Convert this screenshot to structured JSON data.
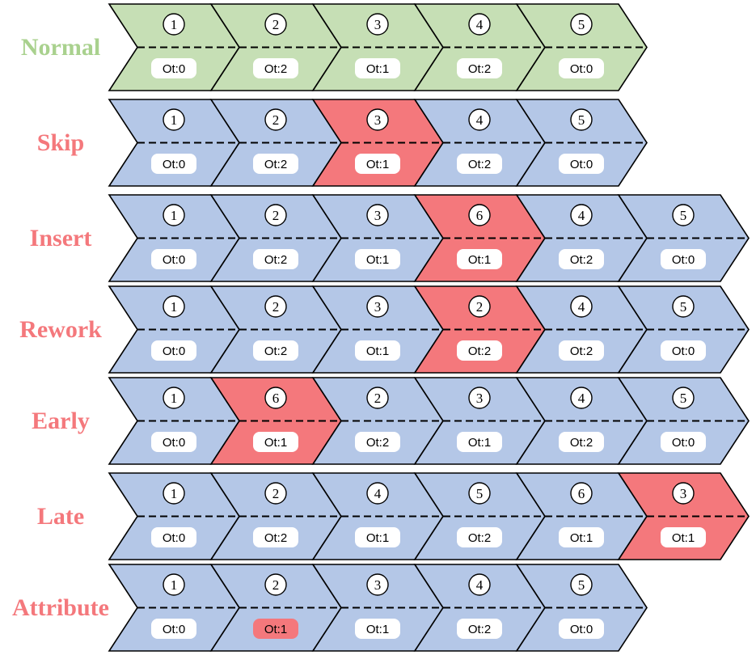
{
  "colors": {
    "normal": "#c6dfb5",
    "variant": "#b4c7e7",
    "deviation": "#f4787c",
    "label_normal": "#a9d18e",
    "label_deviation": "#f4787c",
    "outline": "#000000",
    "badge": "#ffffff"
  },
  "rows": [
    {
      "label": "Normal",
      "label_kind": "normal",
      "steps": [
        {
          "num": "1",
          "ot": "Ot:0",
          "fill": "normal",
          "badge": "white"
        },
        {
          "num": "2",
          "ot": "Ot:2",
          "fill": "normal",
          "badge": "white"
        },
        {
          "num": "3",
          "ot": "Ot:1",
          "fill": "normal",
          "badge": "white"
        },
        {
          "num": "4",
          "ot": "Ot:2",
          "fill": "normal",
          "badge": "white"
        },
        {
          "num": "5",
          "ot": "Ot:0",
          "fill": "normal",
          "badge": "white"
        }
      ]
    },
    {
      "label": "Skip",
      "label_kind": "deviation",
      "steps": [
        {
          "num": "1",
          "ot": "Ot:0",
          "fill": "variant",
          "badge": "white"
        },
        {
          "num": "2",
          "ot": "Ot:2",
          "fill": "variant",
          "badge": "white"
        },
        {
          "num": "3",
          "ot": "Ot:1",
          "fill": "deviation",
          "badge": "white"
        },
        {
          "num": "4",
          "ot": "Ot:2",
          "fill": "variant",
          "badge": "white"
        },
        {
          "num": "5",
          "ot": "Ot:0",
          "fill": "variant",
          "badge": "white"
        }
      ]
    },
    {
      "label": "Insert",
      "label_kind": "deviation",
      "steps": [
        {
          "num": "1",
          "ot": "Ot:0",
          "fill": "variant",
          "badge": "white"
        },
        {
          "num": "2",
          "ot": "Ot:2",
          "fill": "variant",
          "badge": "white"
        },
        {
          "num": "3",
          "ot": "Ot:1",
          "fill": "variant",
          "badge": "white"
        },
        {
          "num": "6",
          "ot": "Ot:1",
          "fill": "deviation",
          "badge": "white"
        },
        {
          "num": "4",
          "ot": "Ot:2",
          "fill": "variant",
          "badge": "white"
        },
        {
          "num": "5",
          "ot": "Ot:0",
          "fill": "variant",
          "badge": "white"
        }
      ]
    },
    {
      "label": "Rework",
      "label_kind": "deviation",
      "steps": [
        {
          "num": "1",
          "ot": "Ot:0",
          "fill": "variant",
          "badge": "white"
        },
        {
          "num": "2",
          "ot": "Ot:2",
          "fill": "variant",
          "badge": "white"
        },
        {
          "num": "3",
          "ot": "Ot:1",
          "fill": "variant",
          "badge": "white"
        },
        {
          "num": "2",
          "ot": "Ot:2",
          "fill": "deviation",
          "badge": "white"
        },
        {
          "num": "4",
          "ot": "Ot:2",
          "fill": "variant",
          "badge": "white"
        },
        {
          "num": "5",
          "ot": "Ot:0",
          "fill": "variant",
          "badge": "white"
        }
      ]
    },
    {
      "label": "Early",
      "label_kind": "deviation",
      "steps": [
        {
          "num": "1",
          "ot": "Ot:0",
          "fill": "variant",
          "badge": "white"
        },
        {
          "num": "6",
          "ot": "Ot:1",
          "fill": "deviation",
          "badge": "white"
        },
        {
          "num": "2",
          "ot": "Ot:2",
          "fill": "variant",
          "badge": "white"
        },
        {
          "num": "3",
          "ot": "Ot:1",
          "fill": "variant",
          "badge": "white"
        },
        {
          "num": "4",
          "ot": "Ot:2",
          "fill": "variant",
          "badge": "white"
        },
        {
          "num": "5",
          "ot": "Ot:0",
          "fill": "variant",
          "badge": "white"
        }
      ]
    },
    {
      "label": "Late",
      "label_kind": "deviation",
      "steps": [
        {
          "num": "1",
          "ot": "Ot:0",
          "fill": "variant",
          "badge": "white"
        },
        {
          "num": "2",
          "ot": "Ot:2",
          "fill": "variant",
          "badge": "white"
        },
        {
          "num": "4",
          "ot": "Ot:1",
          "fill": "variant",
          "badge": "white"
        },
        {
          "num": "5",
          "ot": "Ot:2",
          "fill": "variant",
          "badge": "white"
        },
        {
          "num": "6",
          "ot": "Ot:1",
          "fill": "variant",
          "badge": "white"
        },
        {
          "num": "3",
          "ot": "Ot:1",
          "fill": "deviation",
          "badge": "white"
        }
      ]
    },
    {
      "label": "Attribute",
      "label_kind": "deviation",
      "steps": [
        {
          "num": "1",
          "ot": "Ot:0",
          "fill": "variant",
          "badge": "white"
        },
        {
          "num": "2",
          "ot": "Ot:1",
          "fill": "variant",
          "badge": "deviation"
        },
        {
          "num": "3",
          "ot": "Ot:1",
          "fill": "variant",
          "badge": "white"
        },
        {
          "num": "4",
          "ot": "Ot:2",
          "fill": "variant",
          "badge": "white"
        },
        {
          "num": "5",
          "ot": "Ot:0",
          "fill": "variant",
          "badge": "white"
        }
      ]
    }
  ]
}
